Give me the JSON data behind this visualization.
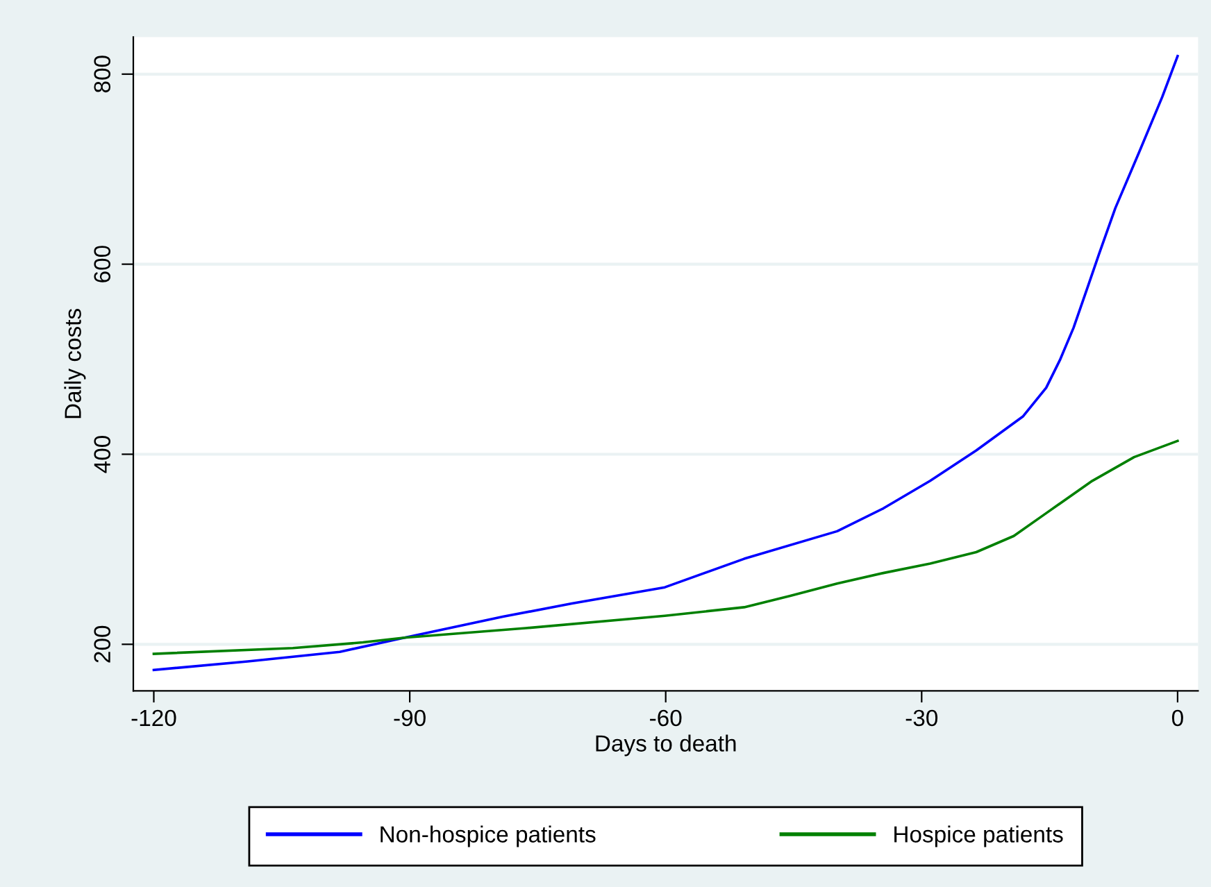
{
  "chart_data": {
    "type": "line",
    "xlabel": "Days to death",
    "ylabel": "Daily costs",
    "xlim": [
      -122.4,
      2.4
    ],
    "xticks": [
      -120,
      -90,
      -60,
      -30,
      0
    ],
    "ylim": [
      151,
      839
    ],
    "yticks": [
      200,
      400,
      600,
      800
    ],
    "grid": "y",
    "legend": "bottom",
    "line_style": "solid",
    "marker": "none",
    "series": [
      {
        "name": "Non-hospice patients",
        "color": "#0000ff",
        "x": [
          -120,
          -109,
          -98.2,
          -90.6,
          -79.1,
          -71,
          -60.1,
          -50.8,
          -39.9,
          -34.5,
          -29,
          -23.6,
          -18.1,
          -15.4,
          -13.8,
          -12.2,
          -10.5,
          -9.2,
          -7.3,
          -4.5,
          -1.8,
          0
        ],
        "values": [
          173,
          182,
          192,
          207,
          229,
          243,
          260,
          290,
          319,
          343,
          372,
          404,
          440,
          470,
          499,
          533,
          577,
          611,
          659,
          718,
          776,
          819
        ]
      },
      {
        "name": "Hospice patients",
        "color": "#008000",
        "x": [
          -120,
          -103.7,
          -95.5,
          -90.6,
          -76.4,
          -60.1,
          -50.8,
          -45.4,
          -39.9,
          -34.5,
          -29,
          -23.6,
          -19.2,
          -15.4,
          -10,
          -5.1,
          0
        ],
        "values": [
          190,
          196,
          202,
          207,
          217,
          230,
          239,
          251,
          264,
          275,
          285,
          297,
          314,
          338,
          372,
          397,
          414
        ]
      }
    ]
  }
}
